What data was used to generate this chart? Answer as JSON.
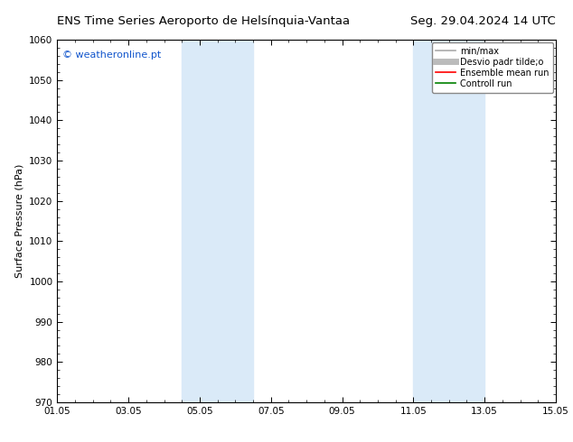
{
  "title_left": "ENS Time Series Aeroporto de Helsínquia-Vantaa",
  "title_right": "Seg. 29.04.2024 14 UTC",
  "ylabel": "Surface Pressure (hPa)",
  "ylim": [
    970,
    1060
  ],
  "yticks": [
    970,
    980,
    990,
    1000,
    1010,
    1020,
    1030,
    1040,
    1050,
    1060
  ],
  "xlim": [
    0,
    14
  ],
  "xtick_labels": [
    "01.05",
    "03.05",
    "05.05",
    "07.05",
    "09.05",
    "11.05",
    "13.05",
    "15.05"
  ],
  "xtick_positions": [
    0,
    2,
    4,
    6,
    8,
    10,
    12,
    14
  ],
  "shaded_bands": [
    {
      "xmin": 3.5,
      "xmax": 5.5,
      "color": "#daeaf8"
    },
    {
      "xmin": 10.0,
      "xmax": 12.0,
      "color": "#daeaf8"
    }
  ],
  "watermark": "© weatheronline.pt",
  "watermark_color": "#1155cc",
  "legend_items": [
    {
      "label": "min/max",
      "color": "#aaaaaa",
      "lw": 1.2,
      "style": "solid"
    },
    {
      "label": "Desvio padr tilde;o",
      "color": "#bbbbbb",
      "lw": 5,
      "style": "solid"
    },
    {
      "label": "Ensemble mean run",
      "color": "red",
      "lw": 1.2,
      "style": "solid"
    },
    {
      "label": "Controll run",
      "color": "green",
      "lw": 1.2,
      "style": "solid"
    }
  ],
  "background_color": "#ffffff",
  "plot_bg_color": "#ffffff",
  "border_color": "#000000",
  "title_fontsize": 9.5,
  "tick_fontsize": 7.5,
  "ylabel_fontsize": 8,
  "watermark_fontsize": 8,
  "legend_fontsize": 7
}
